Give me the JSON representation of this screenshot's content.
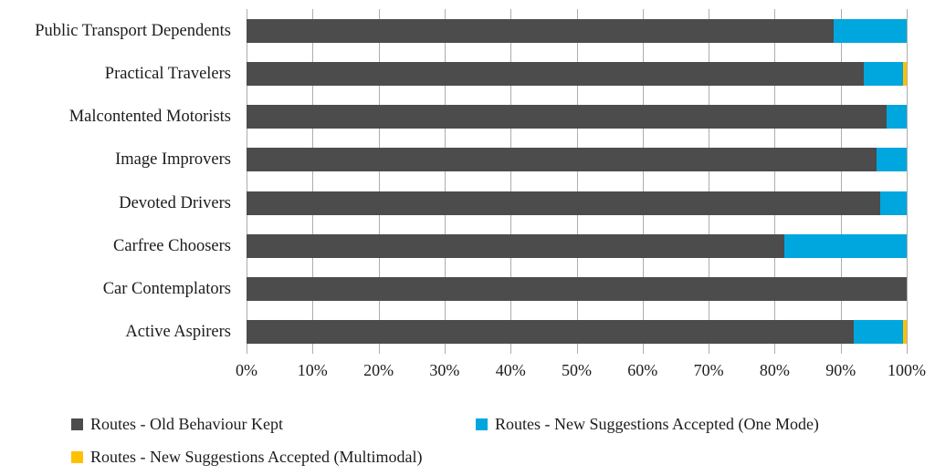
{
  "chart_data": {
    "type": "bar",
    "orientation": "horizontal",
    "stacked": true,
    "title": "",
    "xlabel": "",
    "ylabel": "",
    "xlim": [
      0,
      100
    ],
    "grid": "vertical",
    "gridline_color": "#adadad",
    "background_color": "#ffffff",
    "legend_position": "bottom",
    "categories": [
      "Public Transport Dependents",
      "Practical Travelers",
      "Malcontented Motorists",
      "Image Improvers",
      "Devoted Drivers",
      "Carfree Choosers",
      "Car Contemplators",
      "Active Aspirers"
    ],
    "series": [
      {
        "name": "Routes - Old Behaviour Kept",
        "color": "#4c4c4c",
        "values": [
          89,
          93.5,
          97,
          95.5,
          96,
          81.5,
          100,
          92
        ]
      },
      {
        "name": "Routes - New Suggestions Accepted (One Mode)",
        "color": "#00a6de",
        "values": [
          11,
          6,
          3,
          4.5,
          4,
          18.5,
          0,
          7.5
        ]
      },
      {
        "name": "Routes - New Suggestions Accepted (Multimodal)",
        "color": "#ffc000",
        "values": [
          0,
          0.5,
          0,
          0,
          0,
          0,
          0,
          0.5
        ]
      }
    ],
    "x_ticks": [
      "0%",
      "10%",
      "20%",
      "30%",
      "40%",
      "50%",
      "60%",
      "70%",
      "80%",
      "90%",
      "100%"
    ]
  }
}
